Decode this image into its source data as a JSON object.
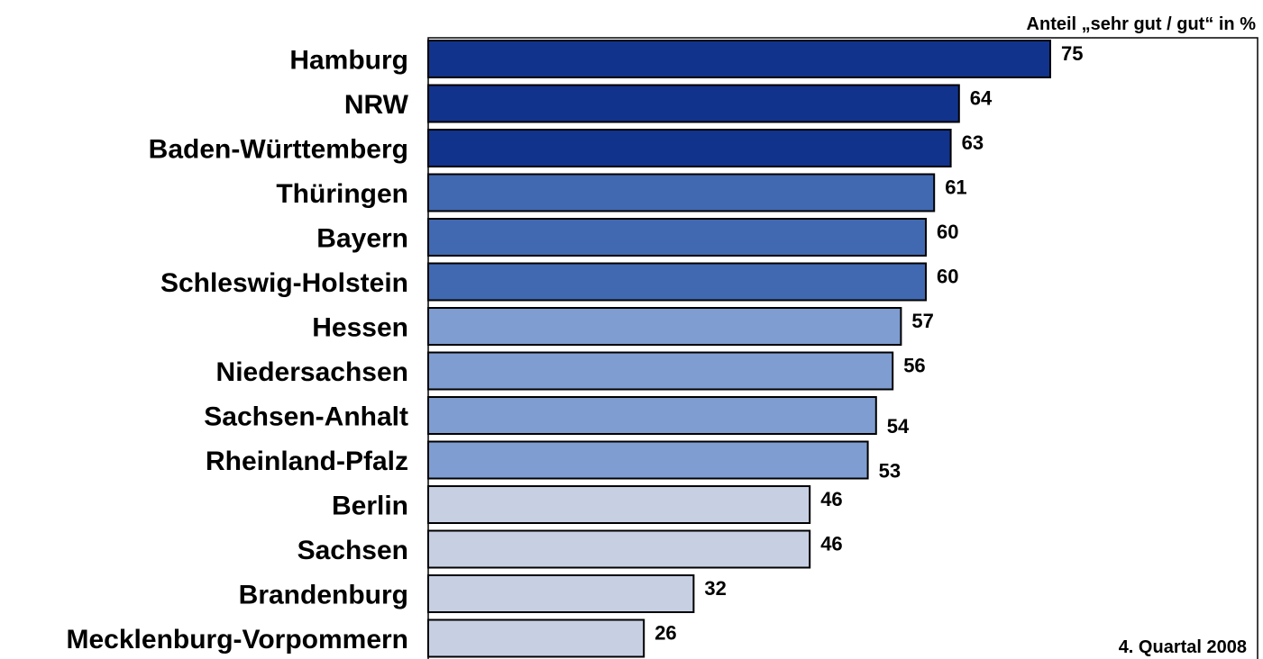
{
  "chart_data": {
    "type": "bar",
    "orientation": "horizontal",
    "unit_label": "Anteil „sehr gut / gut“ in %",
    "footnote": "4. Quartal 2008",
    "categories": [
      "Hamburg",
      "NRW",
      "Baden-Württemberg",
      "Thüringen",
      "Bayern",
      "Schleswig-Holstein",
      "Hessen",
      "Niedersachsen",
      "Sachsen-Anhalt",
      "Rheinland-Pfalz",
      "Berlin",
      "Sachsen",
      "Brandenburg",
      "Mecklenburg-Vorpommern"
    ],
    "values": [
      75,
      64,
      63,
      61,
      60,
      60,
      57,
      56,
      54,
      53,
      46,
      46,
      32,
      26
    ],
    "bar_colors": [
      "#12338b",
      "#12338b",
      "#12338b",
      "#4169b2",
      "#4169b2",
      "#4169b2",
      "#7f9dd0",
      "#7f9dd0",
      "#7f9dd0",
      "#7f9dd0",
      "#c7d0e3",
      "#c7d0e3",
      "#c7d0e3",
      "#c7d0e3"
    ],
    "xlim": [
      0,
      100
    ],
    "grid": false,
    "legend": "none"
  }
}
